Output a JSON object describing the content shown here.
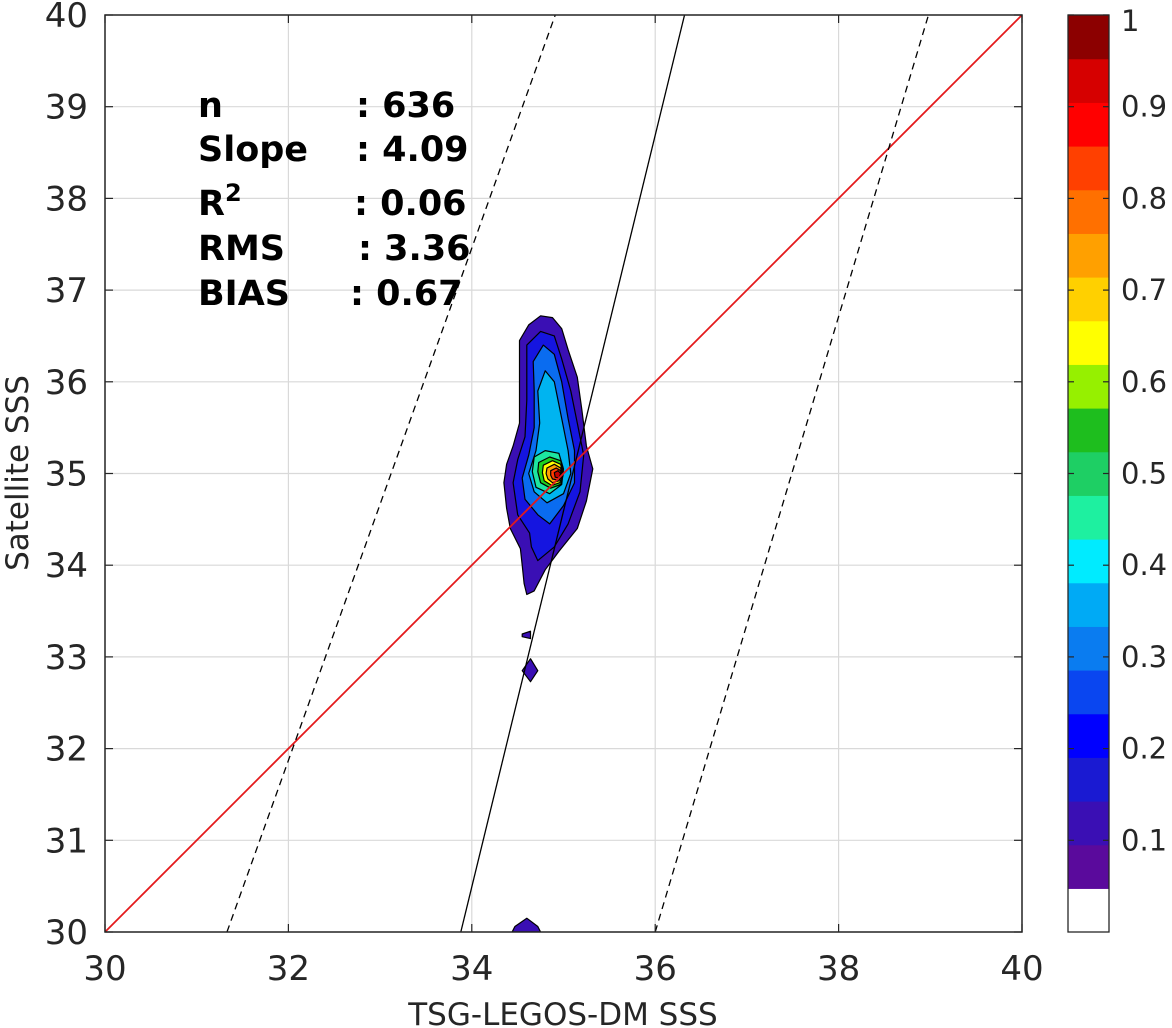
{
  "chart_data": {
    "type": "contour",
    "xlabel": "TSG-LEGOS-DM SSS",
    "ylabel": "Satellite SSS",
    "xlim": [
      30,
      40
    ],
    "ylim": [
      30,
      40
    ],
    "xticks": [
      "30",
      "32",
      "34",
      "36",
      "38",
      "40"
    ],
    "yticks": [
      "30",
      "31",
      "32",
      "33",
      "34",
      "35",
      "36",
      "37",
      "38",
      "39",
      "40"
    ],
    "grid": true,
    "stats": [
      {
        "label": "n",
        "value": ": 636"
      },
      {
        "label": "Slope",
        "value": ": 4.09"
      },
      {
        "label": "R",
        "sup": "2",
        "value": ": 0.06"
      },
      {
        "label": "RMS",
        "value": ": 3.36"
      },
      {
        "label": "BIAS",
        "value": ": 0.67"
      }
    ],
    "reference_lines": [
      {
        "name": "one-to-one",
        "color": "#e41a1c",
        "points": [
          [
            30,
            30
          ],
          [
            40,
            40
          ]
        ]
      },
      {
        "name": "fit",
        "color": "#000000",
        "points": [
          [
            33.88,
            30
          ],
          [
            36.32,
            40
          ]
        ]
      },
      {
        "name": "upper-bound",
        "color": "#000000",
        "dashed": true,
        "points": [
          [
            31.33,
            30
          ],
          [
            34.91,
            40
          ]
        ]
      },
      {
        "name": "lower-bound",
        "color": "#000000",
        "dashed": true,
        "points": [
          [
            36.0,
            30
          ],
          [
            38.98,
            40
          ]
        ]
      }
    ],
    "density_peak": {
      "x": 34.95,
      "y": 34.97,
      "value": 1.0
    },
    "contours": [
      {
        "level": 0.05,
        "color": "#3a0fb4",
        "points": [
          [
            34.52,
            36.45
          ],
          [
            34.62,
            36.62
          ],
          [
            34.75,
            36.72
          ],
          [
            34.88,
            36.7
          ],
          [
            34.98,
            36.58
          ],
          [
            35.05,
            36.35
          ],
          [
            35.15,
            36.05
          ],
          [
            35.2,
            35.7
          ],
          [
            35.25,
            35.3
          ],
          [
            35.32,
            35.05
          ],
          [
            35.25,
            34.7
          ],
          [
            35.15,
            34.4
          ],
          [
            34.95,
            34.15
          ],
          [
            34.8,
            33.95
          ],
          [
            34.68,
            33.72
          ],
          [
            34.6,
            33.68
          ],
          [
            34.57,
            33.8
          ],
          [
            34.55,
            34.0
          ],
          [
            34.53,
            34.18
          ],
          [
            34.42,
            34.4
          ],
          [
            34.38,
            34.62
          ],
          [
            34.35,
            34.9
          ],
          [
            34.38,
            35.1
          ],
          [
            34.45,
            35.3
          ],
          [
            34.52,
            35.55
          ],
          [
            34.52,
            35.9
          ]
        ]
      },
      {
        "level": 0.05,
        "color": "#3a0fb4",
        "points": [
          [
            34.55,
            33.25
          ],
          [
            34.64,
            33.28
          ],
          [
            34.64,
            33.2
          ],
          [
            34.55,
            33.22
          ]
        ]
      },
      {
        "level": 0.05,
        "color": "#3a0fb4",
        "points": [
          [
            34.55,
            32.85
          ],
          [
            34.64,
            32.98
          ],
          [
            34.72,
            32.85
          ],
          [
            34.64,
            32.73
          ]
        ]
      },
      {
        "level": 0.05,
        "color": "#3a0fb4",
        "points": [
          [
            34.47,
            30.06
          ],
          [
            34.6,
            30.15
          ],
          [
            34.72,
            30.06
          ],
          [
            34.75,
            30.0
          ],
          [
            34.44,
            30.0
          ]
        ]
      },
      {
        "level": 0.15,
        "color": "#1515e0",
        "points": [
          [
            34.6,
            36.4
          ],
          [
            34.75,
            36.55
          ],
          [
            34.9,
            36.5
          ],
          [
            34.98,
            36.25
          ],
          [
            35.08,
            35.9
          ],
          [
            35.15,
            35.55
          ],
          [
            35.22,
            35.2
          ],
          [
            35.18,
            34.8
          ],
          [
            35.05,
            34.45
          ],
          [
            34.9,
            34.2
          ],
          [
            34.72,
            34.05
          ],
          [
            34.65,
            34.2
          ],
          [
            34.63,
            34.35
          ],
          [
            34.5,
            34.55
          ],
          [
            34.45,
            34.9
          ],
          [
            34.5,
            35.15
          ],
          [
            34.58,
            35.4
          ],
          [
            34.6,
            35.8
          ]
        ]
      },
      {
        "level": 0.25,
        "color": "#0a6cf0",
        "points": [
          [
            34.67,
            36.22
          ],
          [
            34.78,
            36.4
          ],
          [
            34.9,
            36.3
          ],
          [
            34.98,
            36.0
          ],
          [
            35.05,
            35.6
          ],
          [
            35.12,
            35.25
          ],
          [
            35.12,
            34.9
          ],
          [
            35.0,
            34.65
          ],
          [
            34.85,
            34.45
          ],
          [
            34.72,
            34.55
          ],
          [
            34.58,
            34.72
          ],
          [
            34.55,
            34.95
          ],
          [
            34.62,
            35.2
          ],
          [
            34.68,
            35.5
          ],
          [
            34.68,
            35.9
          ]
        ]
      },
      {
        "level": 0.35,
        "color": "#00b4f0",
        "points": [
          [
            34.72,
            35.9
          ],
          [
            34.8,
            36.12
          ],
          [
            34.9,
            36.0
          ],
          [
            34.98,
            35.6
          ],
          [
            35.05,
            35.25
          ],
          [
            35.08,
            35.0
          ],
          [
            35.0,
            34.78
          ],
          [
            34.82,
            34.68
          ],
          [
            34.68,
            34.8
          ],
          [
            34.62,
            35.0
          ],
          [
            34.7,
            35.25
          ],
          [
            34.74,
            35.55
          ]
        ]
      },
      {
        "level": 0.45,
        "color": "#1de6a0",
        "points": [
          [
            34.68,
            35.18
          ],
          [
            34.8,
            35.25
          ],
          [
            34.95,
            35.22
          ],
          [
            35.0,
            35.05
          ],
          [
            34.98,
            34.88
          ],
          [
            34.85,
            34.78
          ],
          [
            34.7,
            34.85
          ],
          [
            34.66,
            35.02
          ]
        ]
      },
      {
        "level": 0.55,
        "color": "#1ed21e",
        "points": [
          [
            34.73,
            35.12
          ],
          [
            34.85,
            35.18
          ],
          [
            34.97,
            35.14
          ],
          [
            35.0,
            35.0
          ],
          [
            34.97,
            34.88
          ],
          [
            34.86,
            34.84
          ],
          [
            34.75,
            34.9
          ],
          [
            34.72,
            35.02
          ]
        ]
      },
      {
        "level": 0.65,
        "color": "#ffff00",
        "points": [
          [
            34.78,
            35.09
          ],
          [
            34.88,
            35.14
          ],
          [
            34.97,
            35.1
          ],
          [
            34.99,
            34.99
          ],
          [
            34.96,
            34.9
          ],
          [
            34.87,
            34.87
          ],
          [
            34.79,
            34.92
          ],
          [
            34.77,
            35.01
          ]
        ]
      },
      {
        "level": 0.75,
        "color": "#ffa000",
        "points": [
          [
            34.82,
            35.06
          ],
          [
            34.9,
            35.1
          ],
          [
            34.97,
            35.06
          ],
          [
            34.98,
            34.98
          ],
          [
            34.95,
            34.92
          ],
          [
            34.88,
            34.9
          ],
          [
            34.83,
            34.94
          ],
          [
            34.81,
            35.0
          ]
        ]
      },
      {
        "level": 0.85,
        "color": "#ff3c00",
        "points": [
          [
            34.86,
            35.03
          ],
          [
            34.92,
            35.06
          ],
          [
            34.97,
            35.03
          ],
          [
            34.97,
            34.97
          ],
          [
            34.93,
            34.93
          ],
          [
            34.88,
            34.94
          ],
          [
            34.86,
            34.98
          ]
        ]
      },
      {
        "level": 0.95,
        "color": "#c80000",
        "points": [
          [
            34.9,
            35.01
          ],
          [
            34.94,
            35.03
          ],
          [
            34.97,
            35.0
          ],
          [
            34.95,
            34.95
          ],
          [
            34.91,
            34.96
          ]
        ]
      }
    ],
    "colorbar": {
      "ticks": [
        "0.1",
        "0.2",
        "0.3",
        "0.4",
        "0.5",
        "0.6",
        "0.7",
        "0.8",
        "0.9",
        "1"
      ],
      "tick_values": [
        0.1,
        0.2,
        0.3,
        0.4,
        0.5,
        0.6,
        0.7,
        0.8,
        0.9,
        1.0
      ],
      "range": [
        0,
        1
      ],
      "colors": [
        "#ffffff",
        "#5a0a9c",
        "#3a0fb4",
        "#1a1ad2",
        "#0000ff",
        "#0a46f0",
        "#0a7cf0",
        "#00aaf5",
        "#00ebff",
        "#1ef0a0",
        "#1ecf64",
        "#1ebe1e",
        "#96f000",
        "#ffff00",
        "#ffd000",
        "#ffa000",
        "#ff7000",
        "#ff4000",
        "#ff0000",
        "#d60000",
        "#8c0000"
      ]
    }
  }
}
